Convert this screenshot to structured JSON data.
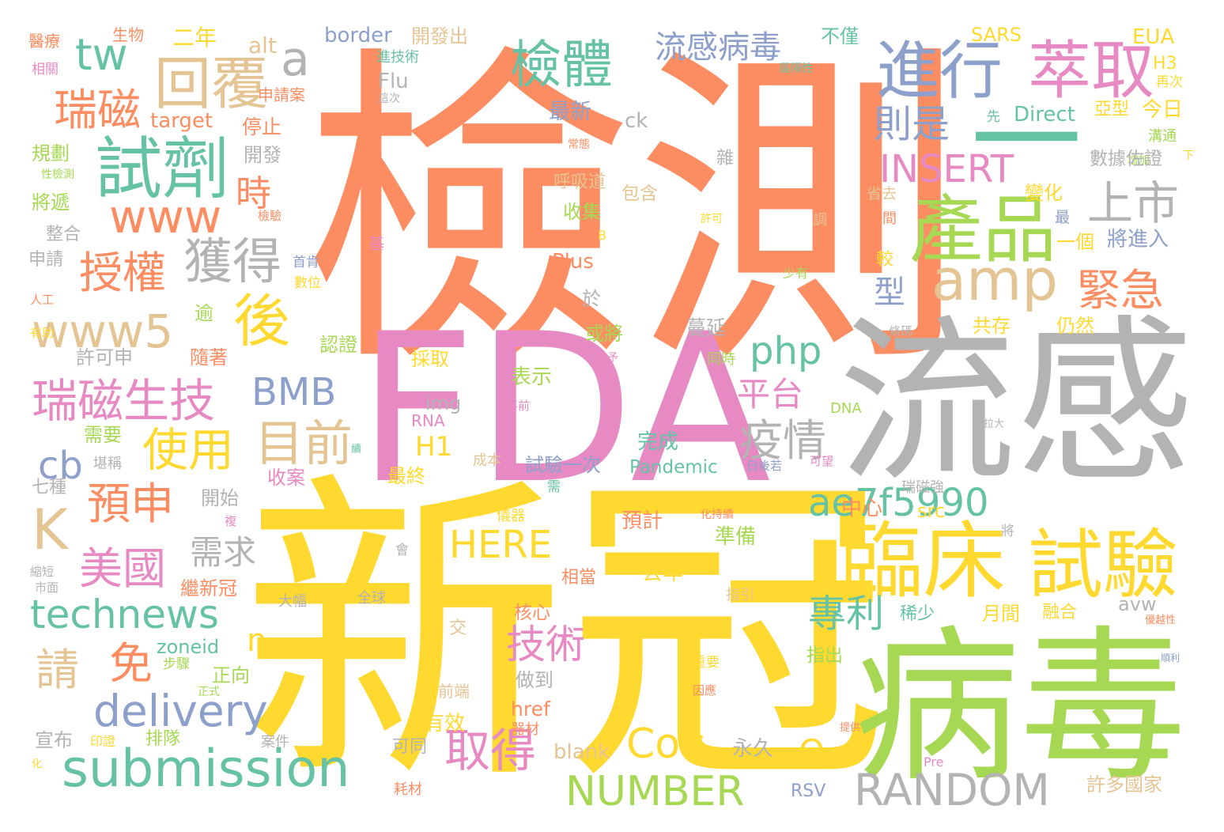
{
  "palette": {
    "orange": "#fc8d62",
    "yellow": "#ffd92f",
    "pink": "#e78ac3",
    "gray": "#b3b3b3",
    "green": "#a6d854",
    "teal": "#66c2a5",
    "blue": "#8da0cb",
    "tan": "#e5c494"
  },
  "words": [
    {
      "text": "檢測",
      "color": "orange",
      "weight": 100
    },
    {
      "text": "新冠",
      "color": "yellow",
      "weight": 98
    },
    {
      "text": "FDA",
      "color": "pink",
      "weight": 80
    },
    {
      "text": "流感",
      "color": "gray",
      "weight": 72
    },
    {
      "text": "病毒",
      "color": "green",
      "weight": 72
    },
    {
      "text": "產品",
      "color": "green",
      "weight": 30
    },
    {
      "text": "進行",
      "color": "blue",
      "weight": 27
    },
    {
      "text": "萃取",
      "color": "pink",
      "weight": 27
    },
    {
      "text": "臨床",
      "color": "yellow",
      "weight": 32
    },
    {
      "text": "試驗",
      "color": "yellow",
      "weight": 30
    },
    {
      "text": "試劑",
      "color": "teal",
      "weight": 28
    },
    {
      "text": "回覆",
      "color": "tan",
      "weight": 25
    },
    {
      "text": "檢體",
      "color": "teal",
      "weight": 22
    },
    {
      "text": "amp",
      "color": "tan",
      "weight": 24
    },
    {
      "text": "上市",
      "color": "gray",
      "weight": 22
    },
    {
      "text": "獲得",
      "color": "gray",
      "weight": 20
    },
    {
      "text": "後",
      "color": "yellow",
      "weight": 22
    },
    {
      "text": "瑞磁",
      "color": "orange",
      "weight": 20
    },
    {
      "text": "www5",
      "color": "tan",
      "weight": 20
    },
    {
      "text": "www",
      "color": "orange",
      "weight": 19
    },
    {
      "text": "授權",
      "color": "orange",
      "weight": 19
    },
    {
      "text": "tw",
      "color": "teal",
      "weight": 18
    },
    {
      "text": "a",
      "color": "gray",
      "weight": 19
    },
    {
      "text": "則是",
      "color": "blue",
      "weight": 17
    },
    {
      "text": "INSERT",
      "color": "pink",
      "weight": 17
    },
    {
      "text": "緊急",
      "color": "orange",
      "weight": 18
    },
    {
      "text": "時",
      "color": "orange",
      "weight": 16
    },
    {
      "text": "瑞磁生技",
      "color": "pink",
      "weight": 19
    },
    {
      "text": "目前",
      "color": "tan",
      "weight": 20
    },
    {
      "text": "BMB",
      "color": "blue",
      "weight": 17
    },
    {
      "text": "php",
      "color": "teal",
      "weight": 17
    },
    {
      "text": "平台",
      "color": "pink",
      "weight": 15
    },
    {
      "text": "疫情",
      "color": "gray",
      "weight": 17
    },
    {
      "text": "使用",
      "color": "yellow",
      "weight": 19
    },
    {
      "text": "型",
      "color": "blue",
      "weight": 14
    },
    {
      "text": "ae7f5990",
      "color": "teal",
      "weight": 17
    },
    {
      "text": "cb",
      "color": "blue",
      "weight": 17
    },
    {
      "text": "K",
      "color": "tan",
      "weight": 20
    },
    {
      "text": "預申",
      "color": "orange",
      "weight": 18
    },
    {
      "text": "美國",
      "color": "pink",
      "weight": 18
    },
    {
      "text": "需求",
      "color": "gray",
      "weight": 15
    },
    {
      "text": "HERE",
      "color": "yellow",
      "weight": 16
    },
    {
      "text": "technews",
      "color": "teal",
      "weight": 18
    },
    {
      "text": "專利",
      "color": "teal",
      "weight": 16
    },
    {
      "text": "技術",
      "color": "pink",
      "weight": 17
    },
    {
      "text": "免",
      "color": "orange",
      "weight": 17
    },
    {
      "text": "n",
      "color": "yellow",
      "weight": 14
    },
    {
      "text": "請",
      "color": "tan",
      "weight": 18
    },
    {
      "text": "delivery",
      "color": "blue",
      "weight": 18
    },
    {
      "text": "Cov",
      "color": "yellow",
      "weight": 17
    },
    {
      "text": "Q",
      "color": "yellow",
      "weight": 14
    },
    {
      "text": "取得",
      "color": "pink",
      "weight": 19
    },
    {
      "text": "submission",
      "color": "teal",
      "weight": 22
    },
    {
      "text": "NUMBER",
      "color": "green",
      "weight": 17
    },
    {
      "text": "RANDOM",
      "color": "gray",
      "weight": 18
    },
    {
      "text": "流感病毒",
      "color": "blue",
      "weight": 14
    },
    {
      "text": "H1",
      "color": "yellow",
      "weight": 12
    },
    {
      "text": "瑞磁強",
      "color": "gray",
      "weight": 6
    },
    {
      "text": "border",
      "color": "blue",
      "weight": 9
    },
    {
      "text": "開發出",
      "color": "tan",
      "weight": 8
    },
    {
      "text": "不僅",
      "color": "teal",
      "weight": 8
    },
    {
      "text": "SARS",
      "color": "yellow",
      "weight": 8
    },
    {
      "text": "EUA",
      "color": "yellow",
      "weight": 9
    },
    {
      "text": "醫療",
      "color": "orange",
      "weight": 7
    },
    {
      "text": "生物",
      "color": "orange",
      "weight": 7
    },
    {
      "text": "二年",
      "color": "yellow",
      "weight": 9
    },
    {
      "text": "alt",
      "color": "tan",
      "weight": 9
    },
    {
      "text": "相關",
      "color": "pink",
      "weight": 6
    },
    {
      "text": "進技術",
      "color": "teal",
      "weight": 6
    },
    {
      "text": "區隔性",
      "color": "teal",
      "weight": 5
    },
    {
      "text": "H3",
      "color": "yellow",
      "weight": 7
    },
    {
      "text": "再次",
      "color": "yellow",
      "weight": 6
    },
    {
      "text": "申請案",
      "color": "orange",
      "weight": 6
    },
    {
      "text": "Flu",
      "color": "gray",
      "weight": 8
    },
    {
      "text": "這次",
      "color": "gray",
      "weight": 5
    },
    {
      "text": "最新",
      "color": "blue",
      "weight": 9
    },
    {
      "text": "亞型",
      "color": "yellow",
      "weight": 7
    },
    {
      "text": "今日",
      "color": "yellow",
      "weight": 8
    },
    {
      "text": "target",
      "color": "orange",
      "weight": 9
    },
    {
      "text": "停止",
      "color": "orange",
      "weight": 9
    },
    {
      "text": "ck",
      "color": "gray",
      "weight": 9
    },
    {
      "text": "先",
      "color": "teal",
      "weight": 5
    },
    {
      "text": "Direct",
      "color": "teal",
      "weight": 9
    },
    {
      "text": "溝通",
      "color": "green",
      "weight": 6
    },
    {
      "text": "常態",
      "color": "orange",
      "weight": 5
    },
    {
      "text": "規劃",
      "color": "green",
      "weight": 8
    },
    {
      "text": "開發",
      "color": "gray",
      "weight": 8
    },
    {
      "text": "性檢測",
      "color": "green",
      "weight": 5
    },
    {
      "text": "雜",
      "color": "gray",
      "weight": 7
    },
    {
      "text": "增加",
      "color": "green",
      "weight": 5
    },
    {
      "text": "數據佐證",
      "color": "gray",
      "weight": 8
    },
    {
      "text": "下",
      "color": "yellow",
      "weight": 5
    },
    {
      "text": "呼吸道",
      "color": "tan",
      "weight": 7
    },
    {
      "text": "包含",
      "color": "tan",
      "weight": 8
    },
    {
      "text": "將遞",
      "color": "green",
      "weight": 8
    },
    {
      "text": "省去",
      "color": "tan",
      "weight": 6
    },
    {
      "text": "變化",
      "color": "yellow",
      "weight": 8
    },
    {
      "text": "收集",
      "color": "green",
      "weight": 8
    },
    {
      "text": "B",
      "color": "yellow",
      "weight": 6
    },
    {
      "text": "檢驗",
      "color": "orange",
      "weight": 5
    },
    {
      "text": "許可",
      "color": "yellow",
      "weight": 5
    },
    {
      "text": "調",
      "color": "tan",
      "weight": 6
    },
    {
      "text": "時間",
      "color": "orange",
      "weight": 6
    },
    {
      "text": "最",
      "color": "blue",
      "weight": 6
    },
    {
      "text": "整合",
      "color": "gray",
      "weight": 8
    },
    {
      "text": "一個",
      "color": "yellow",
      "weight": 8
    },
    {
      "text": "將進入",
      "color": "blue",
      "weight": 8
    },
    {
      "text": "基",
      "color": "pink",
      "weight": 5
    },
    {
      "text": "申請",
      "color": "gray",
      "weight": 8
    },
    {
      "text": "Plus",
      "color": "orange",
      "weight": 9
    },
    {
      "text": "首肯",
      "color": "blue",
      "weight": 6
    },
    {
      "text": "較",
      "color": "yellow",
      "weight": 7
    },
    {
      "text": "數位",
      "color": "yellow",
      "weight": 6
    },
    {
      "text": "少有",
      "color": "green",
      "weight": 6
    },
    {
      "text": "人工",
      "color": "orange",
      "weight": 5
    },
    {
      "text": "於",
      "color": "gray",
      "weight": 7
    },
    {
      "text": "逾",
      "color": "green",
      "weight": 7
    },
    {
      "text": "蔓延",
      "color": "gray",
      "weight": 9
    },
    {
      "text": "共存",
      "color": "yellow",
      "weight": 8
    },
    {
      "text": "仍然",
      "color": "yellow",
      "weight": 8
    },
    {
      "text": "有助",
      "color": "yellow",
      "weight": 5
    },
    {
      "text": "許可申",
      "color": "gray",
      "weight": 8
    },
    {
      "text": "認證",
      "color": "green",
      "weight": 8
    },
    {
      "text": "或將",
      "color": "green",
      "weight": 8
    },
    {
      "text": "給予",
      "color": "pink",
      "weight": 5
    },
    {
      "text": "條碼",
      "color": "gray",
      "weight": 5
    },
    {
      "text": "隨著",
      "color": "orange",
      "weight": 8
    },
    {
      "text": "採取",
      "color": "yellow",
      "weight": 8
    },
    {
      "text": "同時",
      "color": "green",
      "weight": 6
    },
    {
      "text": "表示",
      "color": "green",
      "weight": 9
    },
    {
      "text": "img",
      "color": "gray",
      "weight": 9
    },
    {
      "text": "事前",
      "color": "pink",
      "weight": 5
    },
    {
      "text": "RNA",
      "color": "pink",
      "weight": 7
    },
    {
      "text": "DNA",
      "color": "green",
      "weight": 6
    },
    {
      "text": "拉大",
      "color": "gray",
      "weight": 4
    },
    {
      "text": "需要",
      "color": "green",
      "weight": 8
    },
    {
      "text": "完成",
      "color": "teal",
      "weight": 9
    },
    {
      "text": "續",
      "color": "teal",
      "weight": 4
    },
    {
      "text": "堪稱",
      "color": "gray",
      "weight": 6
    },
    {
      "text": "成本",
      "color": "tan",
      "weight": 6
    },
    {
      "text": "試驗一次",
      "color": "blue",
      "weight": 8
    },
    {
      "text": "Pandemic",
      "color": "teal",
      "weight": 8
    },
    {
      "text": "日後若",
      "color": "blue",
      "weight": 5
    },
    {
      "text": "可望",
      "color": "pink",
      "weight": 5
    },
    {
      "text": "七種",
      "color": "gray",
      "weight": 7
    },
    {
      "text": "收案",
      "color": "pink",
      "weight": 8
    },
    {
      "text": "最終",
      "color": "yellow",
      "weight": 8
    },
    {
      "text": "開始",
      "color": "gray",
      "weight": 8
    },
    {
      "text": "需",
      "color": "teal",
      "weight": 5
    },
    {
      "text": "複",
      "color": "pink",
      "weight": 5
    },
    {
      "text": "中心",
      "color": "orange",
      "weight": 9
    },
    {
      "text": "src",
      "color": "yellow",
      "weight": 9
    },
    {
      "text": "預計",
      "color": "orange",
      "weight": 9
    },
    {
      "text": "儀器",
      "color": "yellow",
      "weight": 6
    },
    {
      "text": "化持續",
      "color": "orange",
      "weight": 5
    },
    {
      "text": "將",
      "color": "gray",
      "weight": 6
    },
    {
      "text": "準備",
      "color": "green",
      "weight": 9
    },
    {
      "text": "會",
      "color": "gray",
      "weight": 6
    },
    {
      "text": "縮短",
      "color": "gray",
      "weight": 5
    },
    {
      "text": "市面",
      "color": "gray",
      "weight": 5
    },
    {
      "text": "去年",
      "color": "yellow",
      "weight": 9
    },
    {
      "text": "相當",
      "color": "orange",
      "weight": 8
    },
    {
      "text": "繼新冠",
      "color": "orange",
      "weight": 8
    },
    {
      "text": "大幅",
      "color": "gray",
      "weight": 6
    },
    {
      "text": "全球",
      "color": "gray",
      "weight": 6
    },
    {
      "text": "指引",
      "color": "tan",
      "weight": 6
    },
    {
      "text": "月間",
      "color": "yellow",
      "weight": 8
    },
    {
      "text": "稀少",
      "color": "teal",
      "weight": 8
    },
    {
      "text": "融合",
      "color": "yellow",
      "weight": 8
    },
    {
      "text": "avw",
      "color": "gray",
      "weight": 7
    },
    {
      "text": "核心",
      "color": "orange",
      "weight": 8
    },
    {
      "text": "交",
      "color": "tan",
      "weight": 7
    },
    {
      "text": "zoneid",
      "color": "teal",
      "weight": 9
    },
    {
      "text": "步驟",
      "color": "green",
      "weight": 6
    },
    {
      "text": "正向",
      "color": "green",
      "weight": 8
    },
    {
      "text": "指出",
      "color": "green",
      "weight": 8
    },
    {
      "text": "優越性",
      "color": "orange",
      "weight": 4
    },
    {
      "text": "重要",
      "color": "yellow",
      "weight": 6
    },
    {
      "text": "順利",
      "color": "blue",
      "weight": 4
    },
    {
      "text": "正式",
      "color": "green",
      "weight": 5
    },
    {
      "text": "做到",
      "color": "gray",
      "weight": 8
    },
    {
      "text": "因應",
      "color": "orange",
      "weight": 5
    },
    {
      "text": "前端",
      "color": "tan",
      "weight": 6
    },
    {
      "text": "href",
      "color": "orange",
      "weight": 9
    },
    {
      "text": "有效",
      "color": "yellow",
      "weight": 9
    },
    {
      "text": "器材",
      "color": "orange",
      "weight": 6
    },
    {
      "text": "提供",
      "color": "orange",
      "weight": 4
    },
    {
      "text": "宣布",
      "color": "gray",
      "weight": 8
    },
    {
      "text": "印證",
      "color": "yellow",
      "weight": 6
    },
    {
      "text": "排隊",
      "color": "green",
      "weight": 7
    },
    {
      "text": "案件",
      "color": "gray",
      "weight": 6
    },
    {
      "text": "可同",
      "color": "gray",
      "weight": 7
    },
    {
      "text": "blank",
      "color": "tan",
      "weight": 9
    },
    {
      "text": "永久",
      "color": "gray",
      "weight": 9
    },
    {
      "text": "Pre",
      "color": "pink",
      "weight": 5
    },
    {
      "text": "化",
      "color": "yellow",
      "weight": 4
    },
    {
      "text": "耗材",
      "color": "orange",
      "weight": 6
    },
    {
      "text": "RSV",
      "color": "blue",
      "weight": 7
    },
    {
      "text": "許多國家",
      "color": "tan",
      "weight": 8
    },
    {
      "text": "一",
      "color": "teal",
      "weight": 14
    }
  ]
}
